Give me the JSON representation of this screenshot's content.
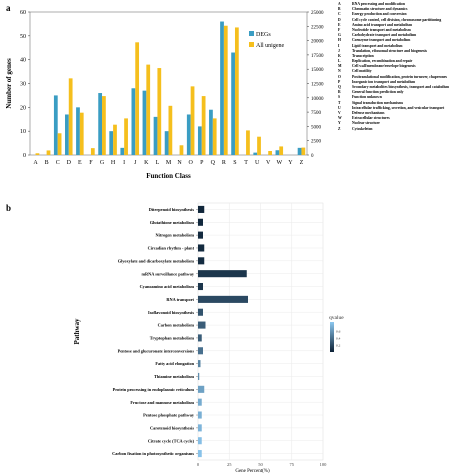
{
  "panels": {
    "a": "a",
    "b": "b"
  },
  "colors": {
    "degs": "#3a9dc3",
    "all": "#f5bf1d",
    "dark": "#0d2236",
    "light": "#8ec6ee",
    "grid": "#ebebeb"
  },
  "chart_data": [
    {
      "type": "bar",
      "xlabel": "Function Class",
      "ylabel": "Number of genes",
      "ylim": [
        0,
        60
      ],
      "ylim_right": [
        0,
        25000
      ],
      "yticks": [
        0,
        10,
        20,
        30,
        40,
        50,
        60
      ],
      "yticks_right": [
        0,
        2500,
        5000,
        7500,
        10000,
        12500,
        15000,
        17500,
        20000,
        22500,
        25000
      ],
      "categories": [
        "A",
        "B",
        "C",
        "D",
        "E",
        "F",
        "G",
        "H",
        "I",
        "J",
        "K",
        "L",
        "M",
        "N",
        "O",
        "P",
        "Q",
        "R",
        "S",
        "T",
        "U",
        "V",
        "W",
        "Y",
        "Z"
      ],
      "series": [
        {
          "name": "DEGs",
          "axis": "left",
          "values": [
            0,
            0,
            25,
            17,
            20,
            0,
            26,
            10,
            3,
            28,
            27,
            16,
            10,
            0,
            17,
            12,
            19,
            56,
            43,
            0,
            1,
            0,
            2,
            0,
            3
          ]
        },
        {
          "name": "All unigene",
          "axis": "right",
          "values": [
            300,
            800,
            3800,
            13400,
            7400,
            1200,
            10300,
            5300,
            6400,
            19700,
            15800,
            15200,
            8600,
            1700,
            12000,
            10300,
            6400,
            22600,
            22300,
            4300,
            3200,
            700,
            1500,
            0,
            1300
          ]
        }
      ],
      "legend_position": "top-right",
      "class_legend": [
        {
          "code": "A",
          "label": "RNA processing and modification"
        },
        {
          "code": "B",
          "label": "Chromatin structure and dynamics"
        },
        {
          "code": "C",
          "label": "Energy production and conversion"
        },
        {
          "code": "D",
          "label": "Cell cycle control, cell division, chromosome partitioning"
        },
        {
          "code": "E",
          "label": "Amino acid transport and metabolism"
        },
        {
          "code": "F",
          "label": "Nucleotide transport and metabolism"
        },
        {
          "code": "G",
          "label": "Carbohydrate transport and metabolism"
        },
        {
          "code": "H",
          "label": "Coenzyme transport and metabolism"
        },
        {
          "code": "I",
          "label": "Lipid transport and metabolism"
        },
        {
          "code": "J",
          "label": "Translation, ribosomal structure and biogenesis"
        },
        {
          "code": "K",
          "label": "Transcription"
        },
        {
          "code": "L",
          "label": "Replication, recombination and repair"
        },
        {
          "code": "M",
          "label": "Cell wall/membrane/envelope biogenesis"
        },
        {
          "code": "N",
          "label": "Cell motility"
        },
        {
          "code": "O",
          "label": "Posttranslational modification, protein turnover, chaperones"
        },
        {
          "code": "P",
          "label": "Inorganic ion transport and metabolism"
        },
        {
          "code": "Q",
          "label": "Secondary metabolites biosynthesis, transport and catabolism"
        },
        {
          "code": "R",
          "label": "General function prediction only"
        },
        {
          "code": "S",
          "label": "Function unknown"
        },
        {
          "code": "T",
          "label": "Signal transduction mechanisms"
        },
        {
          "code": "U",
          "label": "Intracellular trafficking, secretion, and vesicular transport"
        },
        {
          "code": "V",
          "label": "Defense mechanisms"
        },
        {
          "code": "W",
          "label": "Extracellular structures"
        },
        {
          "code": "Y",
          "label": "Nuclear structure"
        },
        {
          "code": "Z",
          "label": "Cytoskeleton"
        }
      ]
    },
    {
      "type": "bar",
      "orientation": "horizontal",
      "xlabel": "Gene Percent(%)",
      "ylabel": "Pathway",
      "xlim": [
        0,
        100
      ],
      "xticks": [
        0,
        25,
        50,
        75,
        100
      ],
      "grid": true,
      "categories": [
        "Diterpenoid biosynthesis",
        "Glutathione metabolism",
        "Nitrogen metabolism",
        "Circadian rhythm - plant",
        "Glyoxylate and dicarboxylate metabolism",
        "mRNA surveillance pathway",
        "Cyanoamino acid metabolism",
        "RNA transport",
        "Isoflavonoid biosynthesis",
        "Carbon metabolism",
        "Tryptophan metabolism",
        "Pentose and glucuronate interconversions",
        "Fatty acid elongation",
        "Thiamine metabolism",
        "Protein processing in endoplasmic reticulum",
        "Fructose and mannose metabolism",
        "Pentose phosphate pathway",
        "Carotenoid biosynthesis",
        "Citrate cycle (TCA cycle)",
        "Carbon fixation in photosynthetic organisms"
      ],
      "values": [
        5,
        4,
        4,
        5,
        5,
        39,
        4,
        40,
        4,
        6,
        3,
        4,
        2,
        1,
        5,
        3,
        3,
        3,
        3,
        3
      ],
      "qvalue": [
        0.02,
        0.03,
        0.04,
        0.04,
        0.05,
        0.1,
        0.1,
        0.2,
        0.25,
        0.3,
        0.3,
        0.4,
        0.5,
        0.55,
        0.65,
        0.7,
        0.72,
        0.75,
        0.8,
        0.82
      ],
      "colorbar": {
        "title": "qvalue",
        "ticks": [
          0.6,
          0.4,
          0.2
        ],
        "range": [
          0,
          0.85
        ]
      }
    }
  ]
}
